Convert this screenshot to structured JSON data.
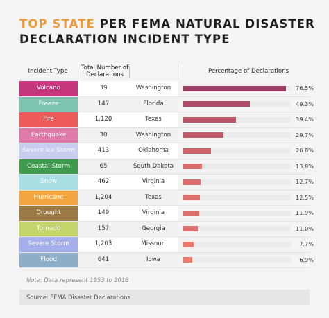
{
  "title": {
    "accent": "TOP STATE",
    "line1_rest": " PER FEMA NATURAL DISASTER",
    "line2": "DECLARATION INCIDENT TYPE"
  },
  "headers": {
    "incident_type": "Incident Type",
    "total": "Total Number of Declarations",
    "percentage": "Percentage of Declarations"
  },
  "colors": {
    "bar_high": "#9b3b63",
    "bar_low": "#ef7f6f",
    "title_accent": "#ef9a3a"
  },
  "chart_data": {
    "type": "table",
    "columns": [
      "Incident Type",
      "Total Number of Declarations",
      "",
      "Percentage of Declarations"
    ],
    "rows": [
      {
        "type": "Volcano",
        "total": "39",
        "state": "Washington",
        "pct": 76.5,
        "pct_label": "76.5%",
        "color": "#c5357d"
      },
      {
        "type": "Freeze",
        "total": "147",
        "state": "Florida",
        "pct": 49.3,
        "pct_label": "49.3%",
        "color": "#7dc3b1"
      },
      {
        "type": "Fire",
        "total": "1,120",
        "state": "Texas",
        "pct": 39.4,
        "pct_label": "39.4%",
        "color": "#ee5a5a"
      },
      {
        "type": "Earthquake",
        "total": "30",
        "state": "Washington",
        "pct": 29.7,
        "pct_label": "29.7%",
        "color": "#e07aa8"
      },
      {
        "type": "Severe Ice Storm",
        "total": "413",
        "state": "Oklahoma",
        "pct": 20.8,
        "pct_label": "20.8%",
        "color": "#c8cdf2"
      },
      {
        "type": "Coastal Storm",
        "total": "65",
        "state": "South Dakota",
        "pct": 13.8,
        "pct_label": "13.8%",
        "color": "#3f9a4e"
      },
      {
        "type": "Snow",
        "total": "462",
        "state": "Virginia",
        "pct": 12.7,
        "pct_label": "12.7%",
        "color": "#a9dfe3"
      },
      {
        "type": "Hurricane",
        "total": "1,204",
        "state": "Texas",
        "pct": 12.5,
        "pct_label": "12.5%",
        "color": "#f3a440"
      },
      {
        "type": "Drought",
        "total": "149",
        "state": "Virginia",
        "pct": 11.9,
        "pct_label": "11.9%",
        "color": "#9c7a45"
      },
      {
        "type": "Tornado",
        "total": "157",
        "state": "Georgia",
        "pct": 11.0,
        "pct_label": "11.0%",
        "color": "#c1d56a"
      },
      {
        "type": "Severe Storm",
        "total": "1,203",
        "state": "Missouri",
        "pct": 7.7,
        "pct_label": "7.7%",
        "color": "#a6b0ee"
      },
      {
        "type": "Flood",
        "total": "641",
        "state": "Iowa",
        "pct": 6.9,
        "pct_label": "6.9%",
        "color": "#8eadc6"
      }
    ],
    "xlim": [
      0,
      80
    ]
  },
  "note": "Note: Data represent 1953 to 2018",
  "source": "Source: FEMA Disaster Declarations"
}
